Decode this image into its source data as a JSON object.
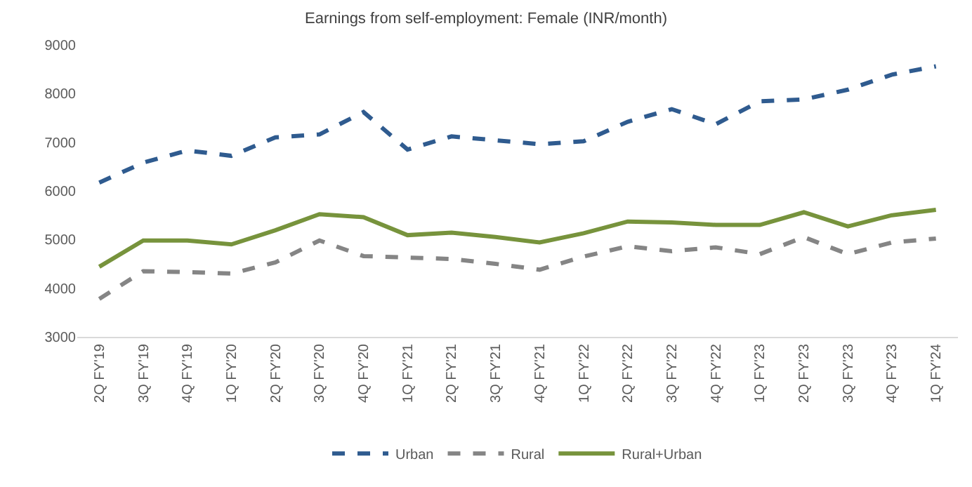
{
  "chart_data": {
    "type": "line",
    "title": "Earnings from self-employment: Female (INR/month)",
    "categories": [
      "2Q FY'19",
      "3Q FY'19",
      "4Q FY'19",
      "1Q FY'20",
      "2Q FY'20",
      "3Q FY'20",
      "4Q FY'20",
      "1Q FY'21",
      "2Q FY'21",
      "3Q FY'21",
      "4Q FY'21",
      "1Q FY'22",
      "2Q FY'22",
      "3Q FY'22",
      "4Q FY'22",
      "1Q FY'23",
      "2Q FY'23",
      "3Q FY'23",
      "4Q FY'23",
      "1Q FY'24"
    ],
    "series": [
      {
        "name": "Urban",
        "color": "#2f5b8f",
        "line_style": "dashed",
        "values": [
          6170,
          6580,
          6830,
          6720,
          7100,
          7160,
          7620,
          6850,
          7120,
          7040,
          6960,
          7020,
          7420,
          7680,
          7370,
          7840,
          7880,
          8080,
          8390,
          8560
        ]
      },
      {
        "name": "Rural",
        "color": "#858585",
        "line_style": "dashed",
        "values": [
          3780,
          4350,
          4330,
          4300,
          4530,
          4980,
          4660,
          4630,
          4600,
          4500,
          4380,
          4650,
          4860,
          4760,
          4840,
          4700,
          5050,
          4700,
          4940,
          5020
        ]
      },
      {
        "name": "Rural+Urban",
        "color": "#77933c",
        "line_style": "solid",
        "values": [
          4440,
          4980,
          4980,
          4900,
          5190,
          5520,
          5460,
          5090,
          5140,
          5050,
          4940,
          5130,
          5370,
          5350,
          5300,
          5300,
          5560,
          5270,
          5500,
          5610
        ]
      }
    ],
    "ylim": [
      3000,
      9000
    ],
    "yticks": [
      3000,
      4000,
      5000,
      6000,
      7000,
      8000,
      9000
    ],
    "grid": false,
    "legend": "bottom",
    "marker": "none"
  }
}
